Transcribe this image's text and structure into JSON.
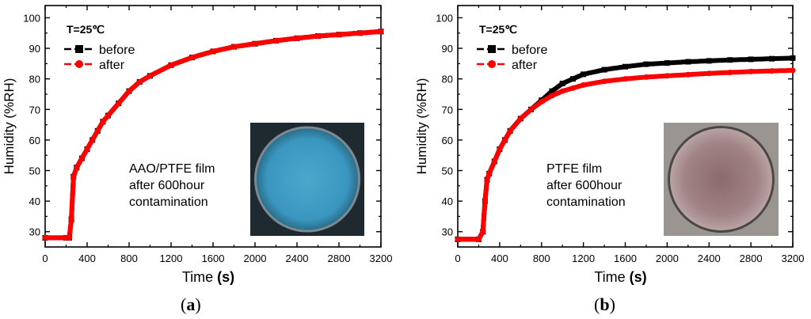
{
  "figure": {
    "label_a": "a",
    "label_b": "b"
  },
  "colors": {
    "before": "#000000",
    "after": "#ff0000",
    "axis": "#000000"
  },
  "chart_data": [
    {
      "id": "a",
      "type": "line",
      "xlabel": "Time",
      "xunit": "(s)",
      "ylabel": "Humidity (%RH)",
      "xlim": [
        0,
        3200
      ],
      "ylim": [
        25,
        104
      ],
      "xticks": [
        0,
        400,
        800,
        1200,
        1600,
        2000,
        2400,
        2800,
        3200
      ],
      "yticks": [
        30,
        40,
        50,
        60,
        70,
        80,
        90,
        100
      ],
      "temperature": "T=25℃",
      "legend": [
        "before",
        "after"
      ],
      "annotation": [
        "AAO/PTFE  film",
        "after 600hour",
        "contamination"
      ],
      "photo": "blue-membrane",
      "series": [
        {
          "name": "before",
          "x": [
            0,
            200,
            230,
            250,
            270,
            300,
            350,
            400,
            450,
            500,
            550,
            600,
            700,
            800,
            900,
            1000,
            1200,
            1400,
            1600,
            1800,
            2000,
            2200,
            2400,
            2600,
            2800,
            3000,
            3200
          ],
          "y": [
            28,
            28,
            28,
            34,
            48,
            51,
            54,
            57,
            60,
            63,
            66,
            68,
            72,
            76,
            79,
            81,
            84.5,
            87,
            89,
            90.5,
            91.5,
            92.5,
            93.3,
            94,
            94.5,
            95,
            95.5
          ]
        },
        {
          "name": "after",
          "x": [
            0,
            200,
            230,
            250,
            270,
            300,
            350,
            400,
            450,
            500,
            550,
            600,
            700,
            800,
            900,
            1000,
            1200,
            1400,
            1600,
            1800,
            2000,
            2200,
            2400,
            2600,
            2800,
            3000,
            3200
          ],
          "y": [
            28,
            28,
            28,
            34,
            48,
            51,
            54,
            57,
            60,
            63,
            66,
            68,
            72,
            76,
            79,
            81,
            84.5,
            87,
            89,
            90.5,
            91.5,
            92.5,
            93.3,
            94,
            94.5,
            95,
            95.5
          ]
        }
      ]
    },
    {
      "id": "b",
      "type": "line",
      "xlabel": "Time",
      "xunit": "(s)",
      "ylabel": "Humidity (%RH)",
      "xlim": [
        0,
        3200
      ],
      "ylim": [
        25,
        104
      ],
      "xticks": [
        0,
        400,
        800,
        1200,
        1600,
        2000,
        2400,
        2800,
        3200
      ],
      "yticks": [
        30,
        40,
        50,
        60,
        70,
        80,
        90,
        100
      ],
      "temperature": "T=25℃",
      "legend": [
        "before",
        "after"
      ],
      "annotation": [
        "PTFE  film",
        "after 600hour",
        "contamination"
      ],
      "photo": "pink-membrane",
      "series": [
        {
          "name": "before",
          "x": [
            0,
            200,
            240,
            260,
            280,
            300,
            350,
            400,
            450,
            500,
            600,
            700,
            800,
            900,
            1000,
            1100,
            1200,
            1400,
            1600,
            1800,
            2000,
            2200,
            2400,
            2600,
            2800,
            3000,
            3200
          ],
          "y": [
            27.5,
            27.5,
            30,
            40,
            47,
            49,
            53,
            57,
            60,
            63,
            67,
            70,
            73,
            76,
            78.5,
            80,
            81.5,
            83,
            84,
            84.8,
            85.2,
            85.6,
            85.9,
            86.2,
            86.4,
            86.6,
            86.8
          ]
        },
        {
          "name": "after",
          "x": [
            0,
            200,
            240,
            260,
            280,
            300,
            350,
            400,
            450,
            500,
            600,
            700,
            800,
            900,
            1000,
            1100,
            1200,
            1400,
            1600,
            1800,
            2000,
            2200,
            2400,
            2600,
            2800,
            3000,
            3200
          ],
          "y": [
            27.5,
            27.5,
            30,
            40,
            47,
            49,
            53,
            57,
            60,
            63,
            67,
            70,
            72.5,
            74.5,
            76,
            77,
            78,
            79.2,
            80,
            80.6,
            81,
            81.4,
            81.8,
            82.1,
            82.4,
            82.6,
            82.8
          ]
        }
      ]
    }
  ]
}
